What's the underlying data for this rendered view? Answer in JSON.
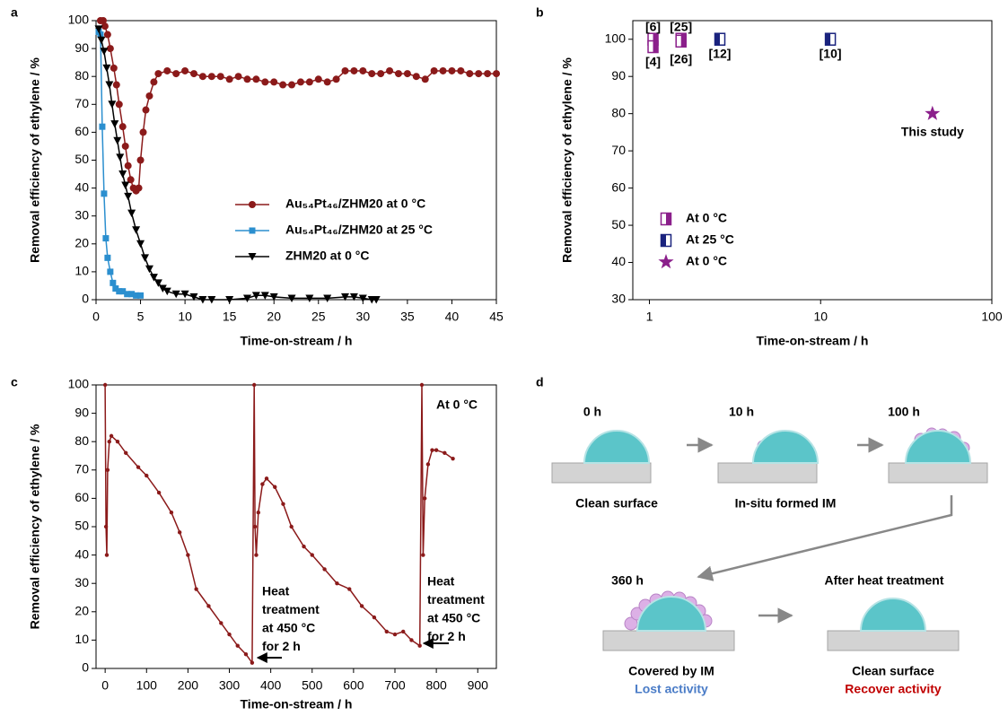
{
  "chart_data": [
    {
      "type": "line",
      "panel": "a",
      "xlabel": "Time-on-stream / h",
      "ylabel": "Removal efficiency of ethylene / %",
      "xlim": [
        0,
        45
      ],
      "ylim": [
        0,
        100
      ],
      "xticks": [
        0,
        5,
        10,
        15,
        20,
        25,
        30,
        35,
        40,
        45
      ],
      "yticks": [
        0,
        10,
        20,
        30,
        40,
        50,
        60,
        70,
        80,
        90,
        100
      ],
      "series": [
        {
          "name": "Au₅₄Pt₄₆/ZHM20 at 0 °C",
          "color": "#8b1a1a",
          "marker": "circle",
          "x": [
            0.5,
            0.8,
            1,
            1.3,
            1.6,
            2,
            2.3,
            2.6,
            3,
            3.3,
            3.6,
            3.9,
            4.2,
            4.5,
            4.8,
            5,
            5.3,
            5.6,
            6,
            6.5,
            7,
            8,
            9,
            10,
            11,
            12,
            13,
            14,
            15,
            16,
            17,
            18,
            19,
            20,
            21,
            22,
            23,
            24,
            25,
            26,
            27,
            28,
            29,
            30,
            31,
            32,
            33,
            34,
            35,
            36,
            37,
            38,
            39,
            40,
            41,
            42,
            43,
            44,
            45
          ],
          "values": [
            100,
            100,
            98,
            95,
            90,
            83,
            77,
            70,
            62,
            55,
            48,
            43,
            40,
            39,
            40,
            50,
            60,
            68,
            73,
            78,
            81,
            82,
            81,
            82,
            81,
            80,
            80,
            80,
            79,
            80,
            79,
            79,
            78,
            78,
            77,
            77,
            78,
            78,
            79,
            78,
            79,
            82,
            82,
            82,
            81,
            81,
            82,
            81,
            81,
            80,
            79,
            82,
            82,
            82,
            82,
            81,
            81,
            81,
            81
          ]
        },
        {
          "name": "Au₅₄Pt₄₆/ZHM20 at 25 °C",
          "color": "#2b8fcf",
          "marker": "square",
          "x": [
            0.3,
            0.5,
            0.7,
            0.9,
            1.1,
            1.3,
            1.6,
            1.9,
            2.2,
            2.6,
            3,
            3.5,
            4,
            4.5,
            5
          ],
          "values": [
            96,
            95,
            62,
            38,
            22,
            15,
            10,
            6,
            4,
            3,
            3,
            2,
            2,
            1.5,
            1.5
          ]
        },
        {
          "name": "ZHM20 at 0 °C",
          "color": "#000000",
          "marker": "triangle",
          "x": [
            0.3,
            0.6,
            0.9,
            1.2,
            1.5,
            1.8,
            2.1,
            2.4,
            2.7,
            3,
            3.3,
            3.6,
            4,
            4.5,
            5,
            5.5,
            6,
            6.5,
            7,
            7.5,
            8,
            9,
            10,
            11,
            12,
            13,
            15,
            17,
            18,
            19,
            20,
            22,
            24,
            26,
            28,
            29,
            30,
            31,
            31.5
          ],
          "values": [
            97,
            93,
            89,
            83,
            77,
            70,
            63,
            57,
            51,
            45,
            41,
            37,
            31,
            25,
            20,
            15,
            11,
            8,
            6,
            4,
            3,
            2,
            2,
            1,
            0,
            0,
            0,
            0.5,
            1.5,
            1.5,
            1,
            0.5,
            0.5,
            0.5,
            1,
            1,
            0.5,
            0,
            0
          ]
        }
      ]
    },
    {
      "type": "scatter",
      "panel": "b",
      "xscale": "log",
      "xlabel": "Time-on-stream / h",
      "ylabel": "Removal efficiency of ethylene / %",
      "xlim": [
        0.8,
        100
      ],
      "ylim": [
        30,
        105
      ],
      "xticks": [
        1,
        10,
        100
      ],
      "yticks": [
        30,
        40,
        50,
        60,
        70,
        80,
        90,
        100
      ],
      "series": [
        {
          "name": "At 0 °C",
          "color": "#8b1f8b",
          "marker": "half-right",
          "x": [
            1.05,
            1.05,
            1.53,
            1.53
          ],
          "values": [
            100,
            98,
            100,
            99.5
          ],
          "labels": [
            "[6]",
            "[4]",
            "[25]",
            "[26]"
          ]
        },
        {
          "name": "At 25 °C",
          "color": "#1a237e",
          "marker": "half-left",
          "x": [
            2.58,
            11.4
          ],
          "values": [
            100,
            100
          ],
          "labels": [
            "[12]",
            "[10]"
          ]
        },
        {
          "name": "At 0 °C",
          "color": "#8b1f8b",
          "marker": "star",
          "x": [
            45
          ],
          "values": [
            80
          ],
          "labels": [
            "This study"
          ]
        }
      ]
    },
    {
      "type": "line",
      "panel": "c",
      "xlabel": "Time-on-stream / h",
      "ylabel": "Removal efficiency of ethylene / %",
      "xlim": [
        -22,
        945
      ],
      "ylim": [
        0,
        100
      ],
      "xticks": [
        0,
        100,
        200,
        300,
        400,
        500,
        600,
        700,
        800,
        900
      ],
      "yticks": [
        0,
        10,
        20,
        30,
        40,
        50,
        60,
        70,
        80,
        90,
        100
      ],
      "annotations": [
        "At 0 °C",
        [
          "Heat",
          "treatment",
          "at 450 °C",
          "for 2 h"
        ],
        [
          "Heat",
          "treatment",
          "at 450 °C",
          "for 2 h"
        ]
      ],
      "series": [
        {
          "color": "#8b1a1a",
          "marker": "dot",
          "x": [
            0,
            2,
            4,
            6,
            10,
            15,
            30,
            50,
            80,
            100,
            130,
            160,
            180,
            200,
            220,
            250,
            280,
            300,
            320,
            340,
            355,
            360,
            362,
            365,
            370,
            380,
            390,
            410,
            430,
            450,
            480,
            500,
            530,
            560,
            590,
            620,
            650,
            680,
            700,
            720,
            740,
            760,
            765,
            768,
            772,
            780,
            790,
            800,
            820,
            840
          ],
          "values": [
            100,
            50,
            40,
            70,
            80,
            82,
            80,
            76,
            71,
            68,
            62,
            55,
            48,
            40,
            28,
            22,
            16,
            12,
            8,
            5,
            2,
            100,
            50,
            40,
            55,
            65,
            67,
            64,
            58,
            50,
            43,
            40,
            35,
            30,
            28,
            22,
            18,
            13,
            12,
            13,
            10,
            8,
            100,
            40,
            60,
            72,
            77,
            77,
            76,
            74
          ]
        }
      ]
    }
  ],
  "diagram": {
    "panel": "d",
    "stages": [
      {
        "label": "0 h",
        "caption": "Clean surface"
      },
      {
        "label": "10 h",
        "caption": "In-situ formed IM"
      },
      {
        "label": "100 h"
      },
      {
        "label": "360 h",
        "caption": "Covered by IM",
        "note": "Lost activity"
      },
      {
        "label": "After heat treatment",
        "caption": "Clean surface",
        "note": "Recover activity"
      }
    ]
  }
}
